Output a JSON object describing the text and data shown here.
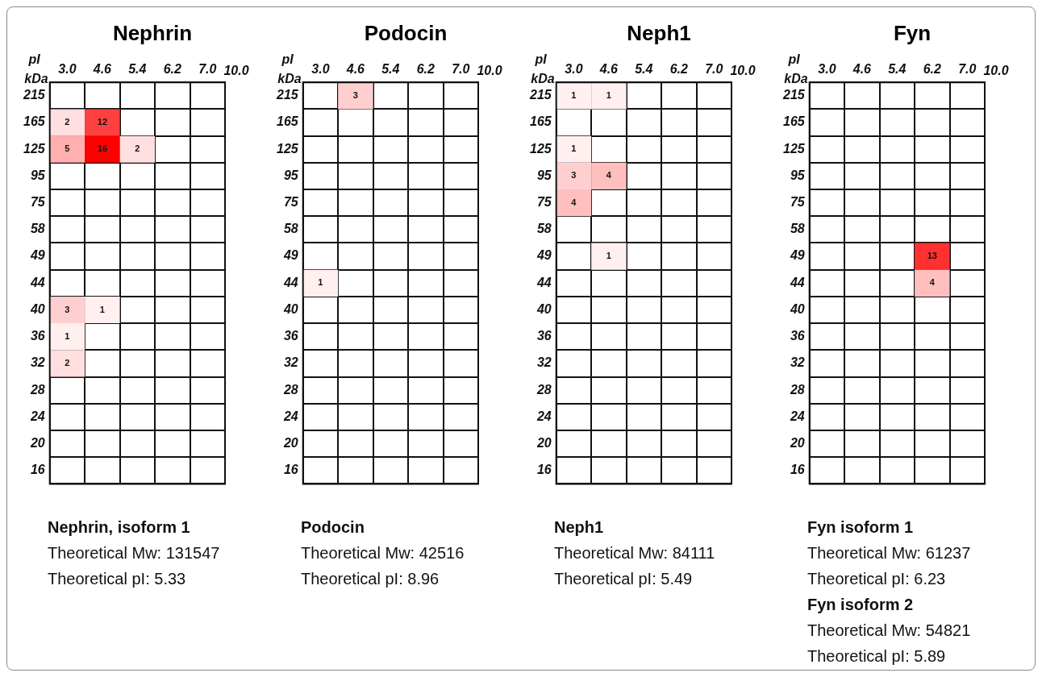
{
  "chart_data": [
    {
      "type": "heatmap",
      "title": "Nephrin",
      "xlabel": "pI",
      "ylabel": "kDa",
      "color": "#ff0000",
      "categories": [
        "3.0",
        "4.6",
        "5.4",
        "6.2",
        "7.0"
      ],
      "y_categories": [
        "215",
        "165",
        "125",
        "95",
        "75",
        "58",
        "49",
        "44",
        "40",
        "36",
        "32",
        "28",
        "24",
        "20",
        "16"
      ],
      "cells": [
        [
          null,
          null,
          null,
          null,
          null
        ],
        [
          2,
          12,
          null,
          null,
          null
        ],
        [
          5,
          16,
          2,
          null,
          null
        ],
        [
          null,
          null,
          null,
          null,
          null
        ],
        [
          null,
          null,
          null,
          null,
          null
        ],
        [
          null,
          null,
          null,
          null,
          null
        ],
        [
          null,
          null,
          null,
          null,
          null
        ],
        [
          null,
          null,
          null,
          null,
          null
        ],
        [
          3,
          1,
          null,
          null,
          null
        ],
        [
          1,
          null,
          null,
          null,
          null
        ],
        [
          2,
          null,
          null,
          null,
          null
        ],
        [
          null,
          null,
          null,
          null,
          null
        ],
        [
          null,
          null,
          null,
          null,
          null
        ],
        [
          null,
          null,
          null,
          null,
          null
        ],
        [
          null,
          null,
          null,
          null,
          null
        ]
      ],
      "data_labels": true,
      "grid": true,
      "annotations": [
        "10.0",
        "Nephrin, isoform 1",
        "Theoretical Mw: 131547",
        "Theoretical pI: 5.33"
      ]
    },
    {
      "type": "heatmap",
      "title": "Podocin",
      "xlabel": "pI",
      "ylabel": "kDa",
      "color": "#ff0000",
      "categories": [
        "3.0",
        "4.6",
        "5.4",
        "6.2",
        "7.0"
      ],
      "y_categories": [
        "215",
        "165",
        "125",
        "95",
        "75",
        "58",
        "49",
        "44",
        "40",
        "36",
        "32",
        "28",
        "24",
        "20",
        "16"
      ],
      "cells": [
        [
          null,
          3,
          null,
          null,
          null
        ],
        [
          null,
          null,
          null,
          null,
          null
        ],
        [
          null,
          null,
          null,
          null,
          null
        ],
        [
          null,
          null,
          null,
          null,
          null
        ],
        [
          null,
          null,
          null,
          null,
          null
        ],
        [
          null,
          null,
          null,
          null,
          null
        ],
        [
          null,
          null,
          null,
          null,
          null
        ],
        [
          1,
          null,
          null,
          null,
          null
        ],
        [
          null,
          null,
          null,
          null,
          null
        ],
        [
          null,
          null,
          null,
          null,
          null
        ],
        [
          null,
          null,
          null,
          null,
          null
        ],
        [
          null,
          null,
          null,
          null,
          null
        ],
        [
          null,
          null,
          null,
          null,
          null
        ],
        [
          null,
          null,
          null,
          null,
          null
        ],
        [
          null,
          null,
          null,
          null,
          null
        ]
      ],
      "data_labels": true,
      "grid": true,
      "annotations": [
        "10.0",
        "Podocin",
        "Theoretical Mw: 42516",
        "Theoretical pI: 8.96"
      ]
    },
    {
      "type": "heatmap",
      "title": "Neph1",
      "xlabel": "pI",
      "ylabel": "kDa",
      "color": "#ff0000",
      "categories": [
        "3.0",
        "4.6",
        "5.4",
        "6.2",
        "7.0"
      ],
      "y_categories": [
        "215",
        "165",
        "125",
        "95",
        "75",
        "58",
        "49",
        "44",
        "40",
        "36",
        "32",
        "28",
        "24",
        "20",
        "16"
      ],
      "cells": [
        [
          1,
          1,
          null,
          null,
          null
        ],
        [
          null,
          null,
          null,
          null,
          null
        ],
        [
          1,
          null,
          null,
          null,
          null
        ],
        [
          3,
          4,
          null,
          null,
          null
        ],
        [
          4,
          null,
          null,
          null,
          null
        ],
        [
          null,
          null,
          null,
          null,
          null
        ],
        [
          null,
          1,
          null,
          null,
          null
        ],
        [
          null,
          null,
          null,
          null,
          null
        ],
        [
          null,
          null,
          null,
          null,
          null
        ],
        [
          null,
          null,
          null,
          null,
          null
        ],
        [
          null,
          null,
          null,
          null,
          null
        ],
        [
          null,
          null,
          null,
          null,
          null
        ],
        [
          null,
          null,
          null,
          null,
          null
        ],
        [
          null,
          null,
          null,
          null,
          null
        ],
        [
          null,
          null,
          null,
          null,
          null
        ]
      ],
      "data_labels": true,
      "grid": true,
      "annotations": [
        "10.0",
        "Neph1",
        "Theoretical Mw: 84111",
        "Theoretical pI: 5.49"
      ]
    },
    {
      "type": "heatmap",
      "title": "Fyn",
      "xlabel": "pI",
      "ylabel": "kDa",
      "color": "#ff0000",
      "categories": [
        "3.0",
        "4.6",
        "5.4",
        "6.2",
        "7.0"
      ],
      "y_categories": [
        "215",
        "165",
        "125",
        "95",
        "75",
        "58",
        "49",
        "44",
        "40",
        "36",
        "32",
        "28",
        "24",
        "20",
        "16"
      ],
      "cells": [
        [
          null,
          null,
          null,
          null,
          null
        ],
        [
          null,
          null,
          null,
          null,
          null
        ],
        [
          null,
          null,
          null,
          null,
          null
        ],
        [
          null,
          null,
          null,
          null,
          null
        ],
        [
          null,
          null,
          null,
          null,
          null
        ],
        [
          null,
          null,
          null,
          null,
          null
        ],
        [
          null,
          null,
          null,
          13,
          null
        ],
        [
          null,
          null,
          null,
          4,
          null
        ],
        [
          null,
          null,
          null,
          null,
          null
        ],
        [
          null,
          null,
          null,
          null,
          null
        ],
        [
          null,
          null,
          null,
          null,
          null
        ],
        [
          null,
          null,
          null,
          null,
          null
        ],
        [
          null,
          null,
          null,
          null,
          null
        ],
        [
          null,
          null,
          null,
          null,
          null
        ],
        [
          null,
          null,
          null,
          null,
          null
        ]
      ],
      "data_labels": true,
      "grid": true,
      "annotations": [
        "10.0",
        "Fyn isoform 1",
        "Theoretical Mw: 61237",
        "Theoretical pI: 6.23",
        "Fyn isoform 2",
        "Theoretical Mw: 54821",
        "Theoretical pI: 5.89"
      ]
    }
  ]
}
